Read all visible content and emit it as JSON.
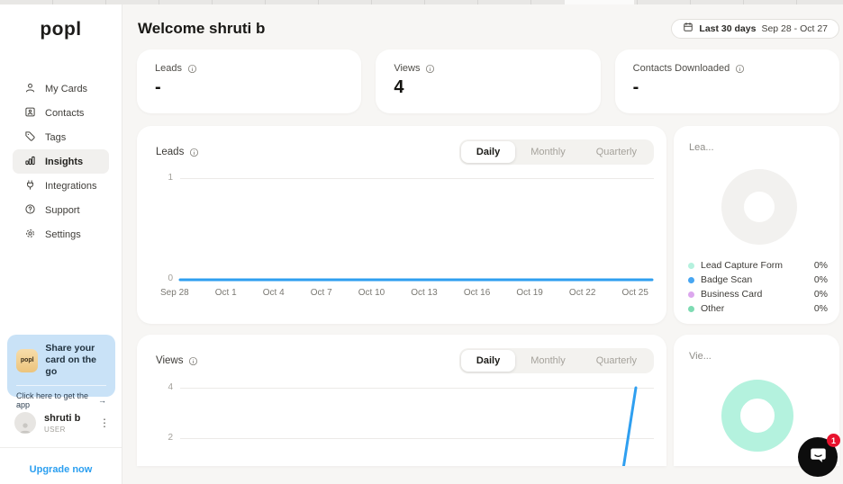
{
  "sidebar": {
    "logo": "popl",
    "nav": [
      {
        "label": "My Cards"
      },
      {
        "label": "Contacts"
      },
      {
        "label": "Tags"
      },
      {
        "label": "Insights"
      },
      {
        "label": "Integrations"
      },
      {
        "label": "Support"
      },
      {
        "label": "Settings"
      }
    ],
    "promo": {
      "app_icon_text": "popl",
      "title": "Share your card on the go",
      "cta": "Click here to get the app",
      "arrow": "→"
    },
    "user": {
      "name": "shruti b",
      "role": "USER"
    },
    "upgrade_label": "Upgrade now"
  },
  "header": {
    "title": "Welcome shruti b",
    "date_filter_label": "Last 30 days",
    "date_filter_range": "Sep 28 - Oct 27"
  },
  "stats": [
    {
      "label": "Leads",
      "value": "-"
    },
    {
      "label": "Views",
      "value": "4"
    },
    {
      "label": "Contacts Downloaded",
      "value": "-"
    }
  ],
  "chat": {
    "badge_count": "1"
  },
  "colors": {
    "accent_blue": "#2f9ff0",
    "mint": "#b4f2de",
    "promo_blue": "#c9e2f7",
    "badge_red": "#e8132e"
  },
  "chart_data": [
    {
      "type": "line",
      "title": "Leads",
      "tabs": [
        "Daily",
        "Monthly",
        "Quarterly"
      ],
      "active_tab": "Daily",
      "x_start": "Sep 28",
      "x_end": "Oct 27",
      "x_tick_labels": [
        "Sep 28",
        "Oct 1",
        "Oct 4",
        "Oct 7",
        "Oct 10",
        "Oct 13",
        "Oct 16",
        "Oct 19",
        "Oct 22",
        "Oct 25"
      ],
      "values": [
        0,
        0,
        0,
        0,
        0,
        0,
        0,
        0,
        0,
        0,
        0,
        0,
        0,
        0,
        0,
        0,
        0,
        0,
        0,
        0,
        0,
        0,
        0,
        0,
        0,
        0,
        0,
        0,
        0,
        0
      ],
      "ylim": [
        0,
        1
      ],
      "ytick_labels": [
        "1",
        "0"
      ],
      "grid": true,
      "legend": "none",
      "line_color": "#2f9ff0"
    },
    {
      "type": "line",
      "title": "Views",
      "tabs": [
        "Daily",
        "Monthly",
        "Quarterly"
      ],
      "active_tab": "Daily",
      "x_start": "Sep 28",
      "x_end": "Oct 27",
      "values": [
        0,
        0,
        0,
        0,
        0,
        0,
        0,
        0,
        0,
        0,
        0,
        0,
        0,
        0,
        0,
        0,
        0,
        0,
        0,
        0,
        0,
        0,
        0,
        0,
        0,
        0,
        0,
        0,
        0,
        4
      ],
      "ylim": [
        0,
        4
      ],
      "ytick_labels": [
        "4",
        "2"
      ],
      "grid": true,
      "legend": "none",
      "line_color": "#2f9ff0"
    },
    {
      "type": "donut",
      "title": "Lea...",
      "empty_ring_color": "#f2f1ef",
      "segments": [
        {
          "label": "Lead Capture Form",
          "value": "0%",
          "color": "#b5f1de"
        },
        {
          "label": "Badge Scan",
          "value": "0%",
          "color": "#47a6f2"
        },
        {
          "label": "Business Card",
          "value": "0%",
          "color": "#dca7ee"
        },
        {
          "label": "Other",
          "value": "0%",
          "color": "#7edbb3"
        }
      ]
    },
    {
      "type": "donut",
      "title": "Vie...",
      "ring_color": "#b4f2de",
      "segments": []
    }
  ]
}
